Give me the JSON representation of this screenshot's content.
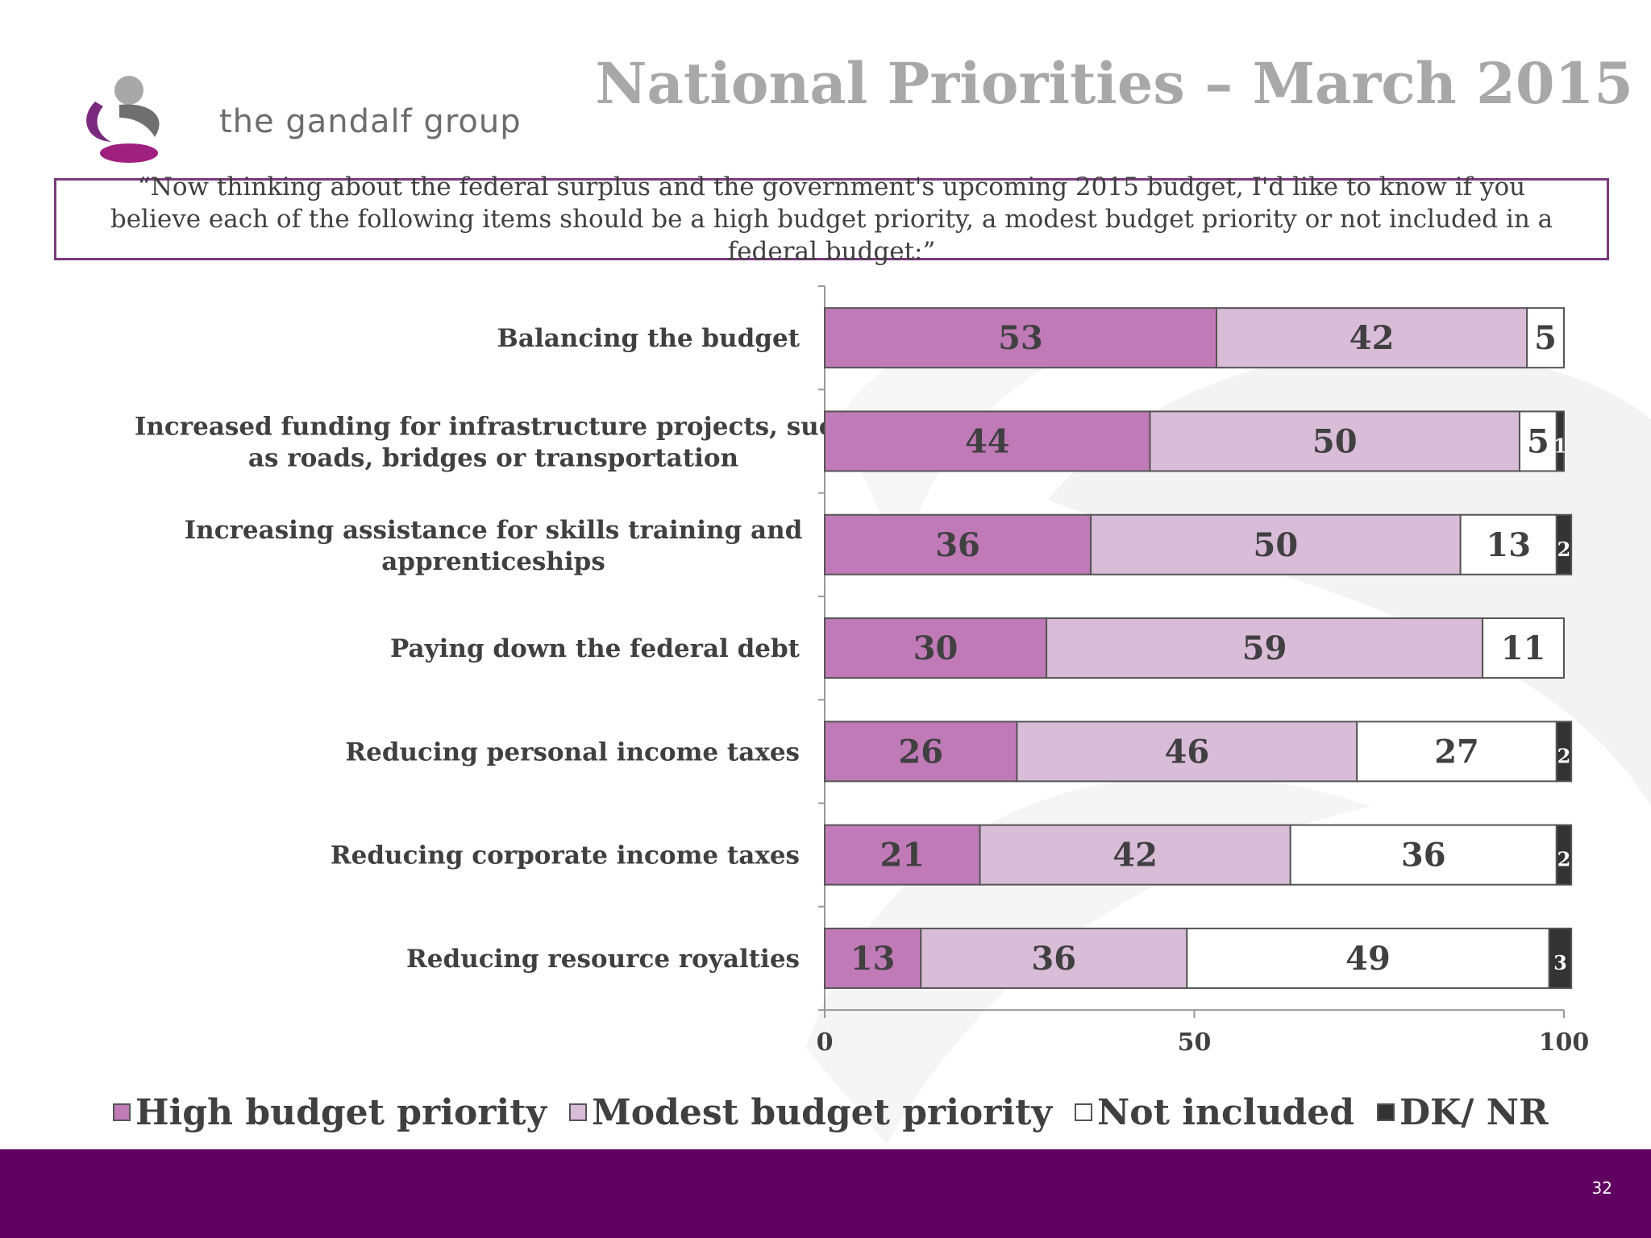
{
  "brand": {
    "name": "the gandalf group",
    "logo_letter": "g"
  },
  "slide": {
    "title": "National Priorities – March 2015",
    "question": "“Now thinking about the federal surplus and the government's upcoming 2015 budget, I'd like to know if you believe each of the following items should be a high budget priority, a modest budget priority or not included in a federal budget:”",
    "page_number": "32"
  },
  "colors": {
    "high": "#c07ab8",
    "modest": "#d9bcd8",
    "not_included": "#ffffff",
    "dk_nr": "#333333",
    "footer": "#600060",
    "title": "#a8a8a8",
    "border": "#7a3a7e"
  },
  "chart_data": {
    "type": "bar",
    "orientation": "horizontal",
    "stacked": true,
    "categories": [
      "Balancing the budget",
      "Increased funding for infrastructure projects, such as roads, bridges or transportation",
      "Increasing assistance for skills training and apprenticeships",
      "Paying down the federal debt",
      "Reducing personal income taxes",
      "Reducing corporate income taxes",
      "Reducing resource royalties"
    ],
    "series": [
      {
        "name": "High budget priority",
        "values": [
          53,
          44,
          36,
          30,
          26,
          21,
          13
        ]
      },
      {
        "name": "Modest budget priority",
        "values": [
          42,
          50,
          50,
          59,
          46,
          42,
          36
        ]
      },
      {
        "name": "Not included",
        "values": [
          5,
          5,
          13,
          11,
          27,
          36,
          49
        ]
      },
      {
        "name": "DK/ NR",
        "values": [
          0,
          1,
          2,
          0,
          2,
          2,
          3
        ]
      }
    ],
    "xlim": [
      0,
      100
    ],
    "xticks": [
      "0",
      "50",
      "100"
    ],
    "legend_position": "bottom",
    "grid": false
  },
  "legend": {
    "items": [
      {
        "label": "High budget priority",
        "color_key": "high"
      },
      {
        "label": "Modest budget priority",
        "color_key": "modest"
      },
      {
        "label": "Not included",
        "color_key": "not_included"
      },
      {
        "label": "DK/ NR",
        "color_key": "dk_nr"
      }
    ]
  }
}
